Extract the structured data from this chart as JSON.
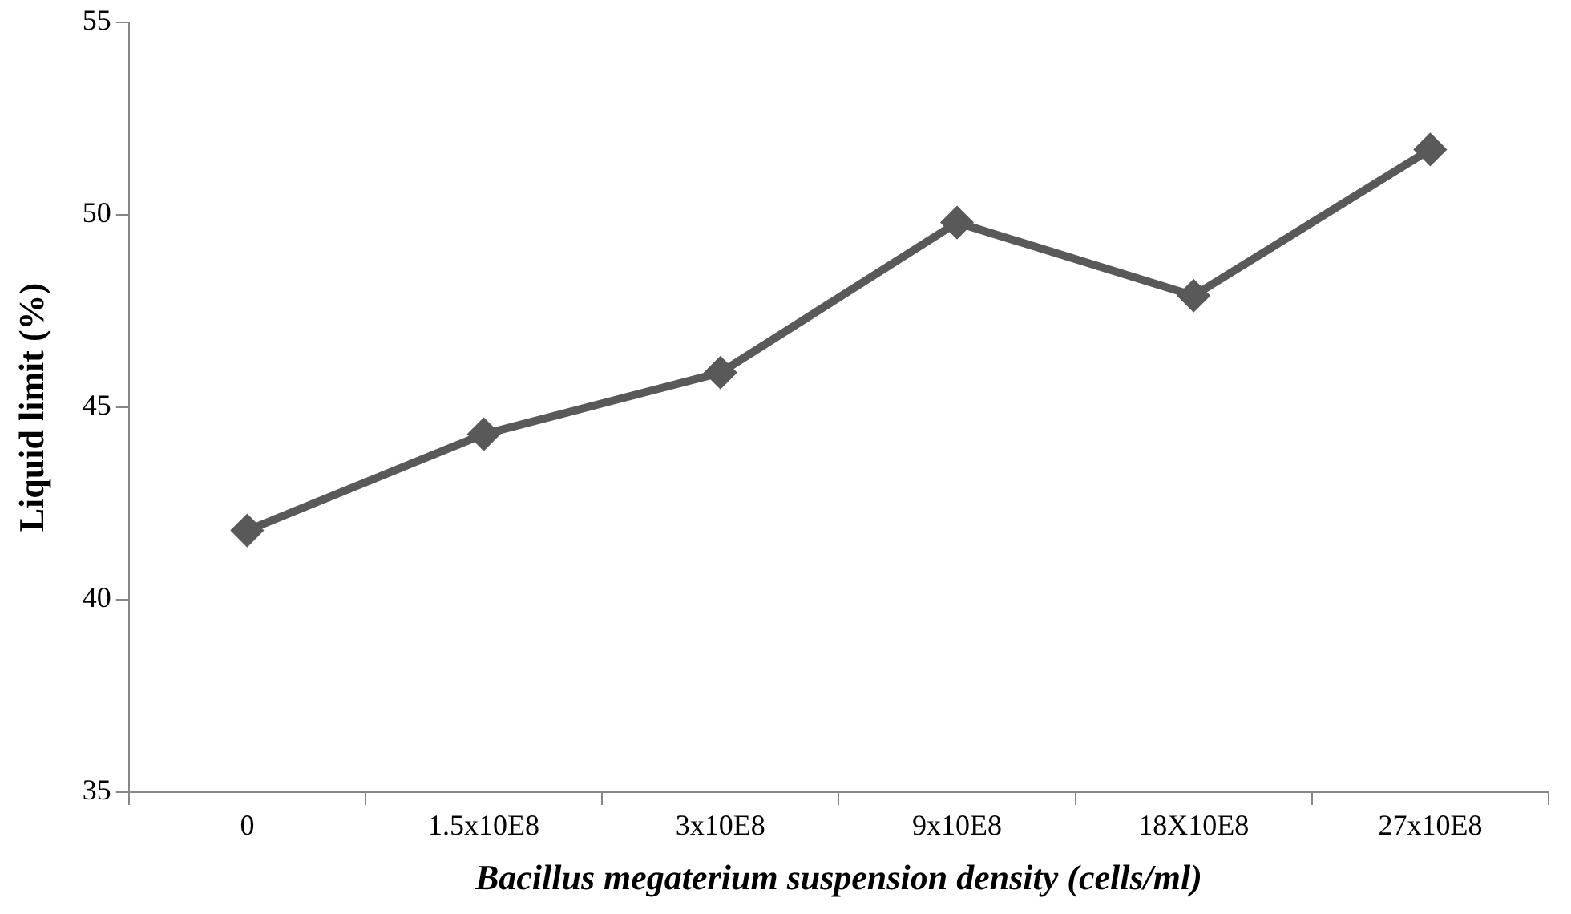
{
  "chart_data": {
    "type": "line",
    "xlabel": "Bacillus megaterium suspension density (cells/ml)",
    "ylabel": "Liquid limit (%)",
    "categories": [
      "0",
      "1.5x10E8",
      "3x10E8",
      "9x10E8",
      "18X10E8",
      "27x10E8"
    ],
    "series": [
      {
        "color": "#595959",
        "values": [
          41.8,
          44.3,
          45.9,
          49.8,
          47.9,
          51.7
        ]
      }
    ],
    "ylim": [
      35,
      55
    ],
    "yticks": [
      35,
      40,
      45,
      50,
      55
    ],
    "grid": false,
    "legend": false,
    "marker": "diamond",
    "line_style": "solid"
  }
}
